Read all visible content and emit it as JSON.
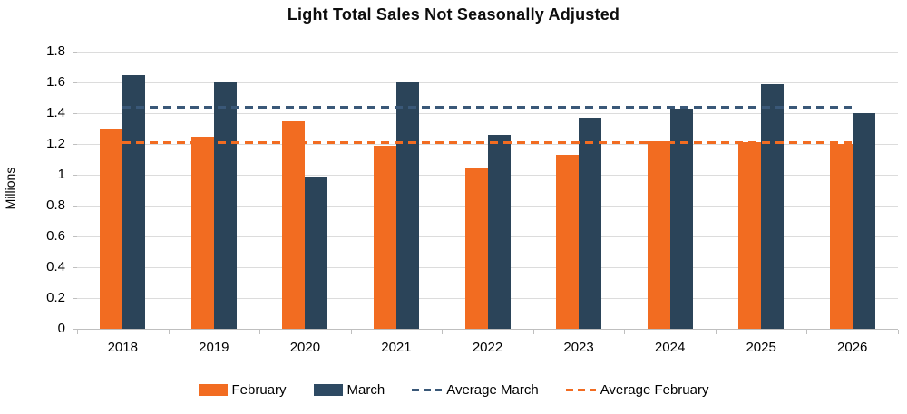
{
  "chart_data": {
    "type": "bar",
    "title": "Light Total Sales Not Seasonally Adjusted",
    "ylabel": "Millions",
    "xlabel": "",
    "categories": [
      "2018",
      "2019",
      "2020",
      "2021",
      "2022",
      "2023",
      "2024",
      "2025",
      "2026"
    ],
    "series": [
      {
        "name": "February",
        "color": "#f26c21",
        "values": [
          1.3,
          1.25,
          1.35,
          1.19,
          1.04,
          1.13,
          1.22,
          1.21,
          1.2
        ]
      },
      {
        "name": "March",
        "color": "#2b4459",
        "values": [
          1.65,
          1.6,
          0.99,
          1.6,
          1.26,
          1.37,
          1.43,
          1.59,
          1.4
        ]
      }
    ],
    "avg_lines": [
      {
        "name": "Average March",
        "value": 1.44,
        "color": "#3a5878"
      },
      {
        "name": "Average February",
        "value": 1.21,
        "color": "#f26c21"
      }
    ],
    "ylim": [
      0,
      1.8
    ],
    "ytick_step": 0.2,
    "ytick_labels": [
      "0",
      "0.2",
      "0.4",
      "0.6",
      "0.8",
      "1",
      "1.2",
      "1.4",
      "1.6",
      "1.8"
    ],
    "grid": true,
    "legend_position": "bottom",
    "legend": [
      {
        "label": "February",
        "type": "rect",
        "color": "#f26c21"
      },
      {
        "label": "March",
        "type": "rect",
        "color": "#2e4a63"
      },
      {
        "label": "Average March",
        "type": "dash",
        "color": "#3a5878"
      },
      {
        "label": "Average February",
        "type": "dash",
        "color": "#f26c21"
      }
    ],
    "colors": {
      "gridline": "#dcdcdc",
      "axis": "#bfbfbf",
      "title_text": "#0d0d0d"
    }
  }
}
